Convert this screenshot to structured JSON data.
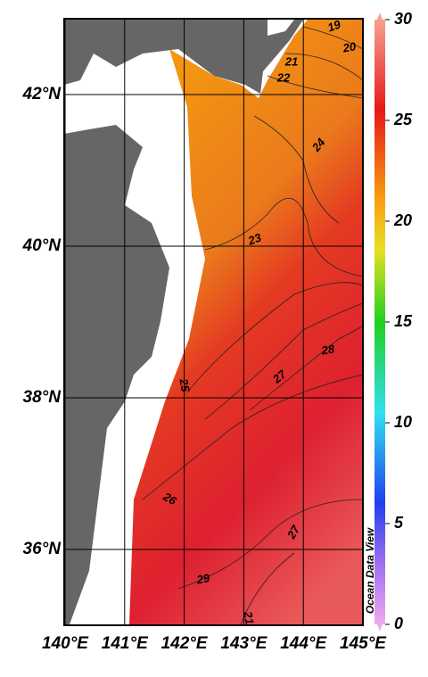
{
  "map": {
    "title": null,
    "xlim": [
      140,
      145
    ],
    "ylim": [
      35,
      43
    ],
    "xticks": [
      {
        "value": 140,
        "label": "140°E"
      },
      {
        "value": 141,
        "label": "141°E"
      },
      {
        "value": 142,
        "label": "142°E"
      },
      {
        "value": 143,
        "label": "143°E"
      },
      {
        "value": 144,
        "label": "144°E"
      },
      {
        "value": 145,
        "label": "145°E"
      }
    ],
    "yticks": [
      {
        "value": 36,
        "label": "36°N"
      },
      {
        "value": 38,
        "label": "38°N"
      },
      {
        "value": 40,
        "label": "40°N"
      },
      {
        "value": 42,
        "label": "42°N"
      }
    ],
    "colorbar": {
      "lim": [
        0,
        30
      ],
      "ticks": [
        0,
        5,
        10,
        15,
        20,
        25,
        30
      ]
    },
    "contour_labels": [
      "19",
      "20",
      "21",
      "22",
      "24",
      "23",
      "25",
      "27",
      "28",
      "26",
      "27",
      "29",
      "21"
    ],
    "watermark": "Ocean Data View"
  }
}
